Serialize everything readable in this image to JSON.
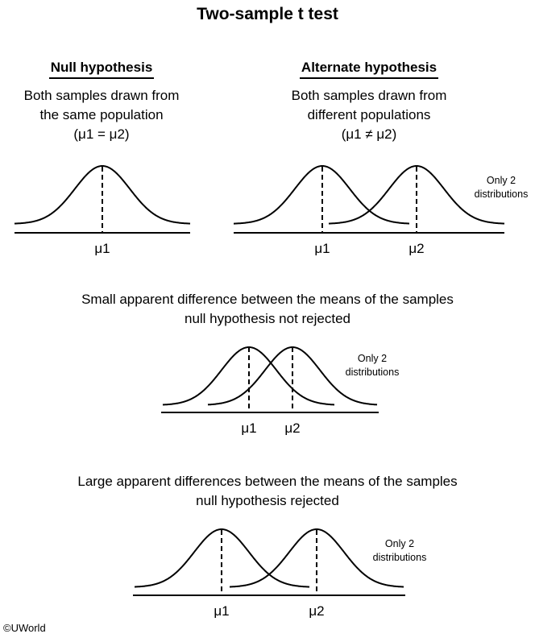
{
  "title": "Two-sample t test",
  "null_panel": {
    "heading": "Null hypothesis",
    "line1": "Both samples drawn from",
    "line2": "the same population",
    "line3": "(μ1 = μ2)",
    "mean_label": "μ1"
  },
  "alt_panel": {
    "heading": "Alternate hypothesis",
    "line1": "Both samples drawn from",
    "line2": "different populations",
    "line3": "(μ1 ≠ μ2)",
    "mean1_label": "μ1",
    "mean2_label": "μ2",
    "note_line1": "Only 2",
    "note_line2": "distributions"
  },
  "small_diff": {
    "line1": "Small apparent difference between the means of the samples",
    "line2": "null hypothesis not rejected",
    "mean1_label": "μ1",
    "mean2_label": "μ2",
    "note_line1": "Only 2",
    "note_line2": "distributions"
  },
  "large_diff": {
    "line1": "Large apparent differences between the means of the samples",
    "line2": "null hypothesis rejected",
    "mean1_label": "μ1",
    "mean2_label": "μ2",
    "note_line1": "Only 2",
    "note_line2": "distributions"
  },
  "copyright": "©UWorld"
}
